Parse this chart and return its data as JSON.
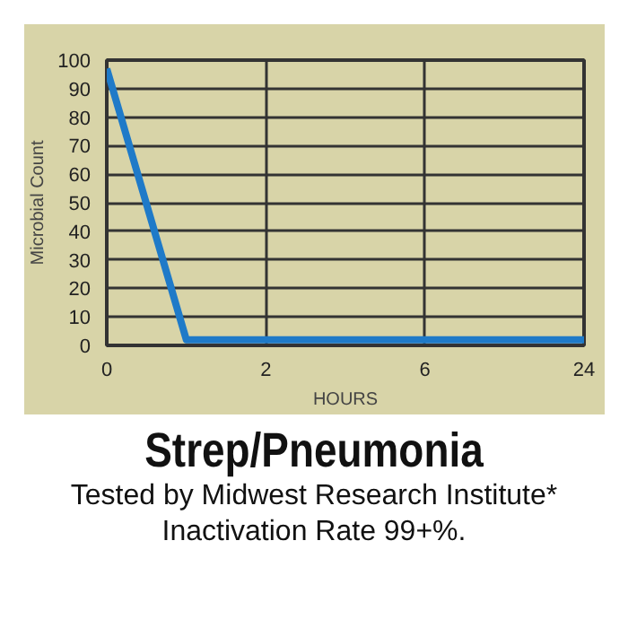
{
  "chart_data": {
    "type": "line",
    "title": "Strep/Pneumonia",
    "xlabel": "HOURS",
    "ylabel": "Microbial Count",
    "categories": [
      "0",
      null,
      "2",
      null,
      "6",
      null,
      "24"
    ],
    "series": [
      {
        "color": "#1f7ac8",
        "values": [
          97,
          2,
          2,
          2,
          2,
          2,
          2
        ]
      }
    ],
    "ylim": [
      0,
      100
    ],
    "yticks": [
      0,
      10,
      20,
      30,
      40,
      50,
      60,
      70,
      80,
      90,
      100
    ],
    "grid": true,
    "marker": "none",
    "line_style": "solid",
    "annotations": [
      "Tested by Midwest Research Institute*",
      "Inactivation Rate 99+%."
    ]
  }
}
